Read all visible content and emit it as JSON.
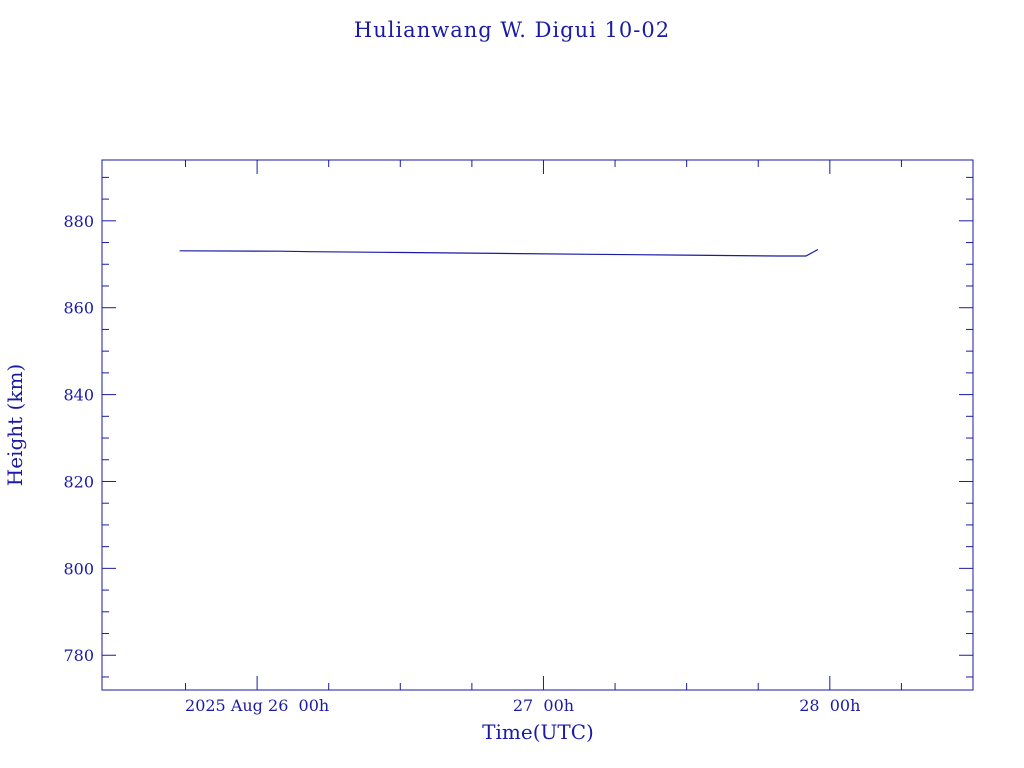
{
  "chart_data": {
    "type": "line",
    "title": "Hulianwang W. Digui 10-02",
    "xlabel": "Time(UTC)",
    "ylabel": "Height (km)",
    "colors": {
      "axis": "#1a1aa6",
      "line": "#1a1aa6",
      "background": "#ffffff"
    },
    "ylim": [
      772,
      894
    ],
    "y_ticks": [
      780,
      800,
      820,
      840,
      860,
      880
    ],
    "y_minor_step": 5,
    "xlim": [
      "2025-08-25T11:00Z",
      "2025-08-28T12:00Z"
    ],
    "x_major_ticks": [
      {
        "t": "2025-08-26T00:00Z",
        "label": "2025 Aug 26  00h"
      },
      {
        "t": "2025-08-27T00:00Z",
        "label": "27  00h"
      },
      {
        "t": "2025-08-28T00:00Z",
        "label": "28  00h"
      }
    ],
    "x_minor_ticks": [
      "2025-08-25T18:00Z",
      "2025-08-26T06:00Z",
      "2025-08-26T12:00Z",
      "2025-08-26T18:00Z",
      "2025-08-27T06:00Z",
      "2025-08-27T12:00Z",
      "2025-08-27T18:00Z",
      "2025-08-28T06:00Z"
    ],
    "series": [
      {
        "points": [
          {
            "x": "2025-08-25T17:30Z",
            "y": 873.1
          },
          {
            "x": "2025-08-26T02:00Z",
            "y": 873.0
          },
          {
            "x": "2025-08-26T04:30Z",
            "y": 872.9
          },
          {
            "x": "2025-08-26T12:20Z",
            "y": 872.7
          },
          {
            "x": "2025-08-26T20:10Z",
            "y": 872.5
          },
          {
            "x": "2025-08-27T04:00Z",
            "y": 872.3
          },
          {
            "x": "2025-08-27T11:50Z",
            "y": 872.1
          },
          {
            "x": "2025-08-27T19:40Z",
            "y": 871.9
          },
          {
            "x": "2025-08-27T22:00Z",
            "y": 871.9
          },
          {
            "x": "2025-08-27T23:00Z",
            "y": 873.4
          }
        ]
      }
    ]
  }
}
